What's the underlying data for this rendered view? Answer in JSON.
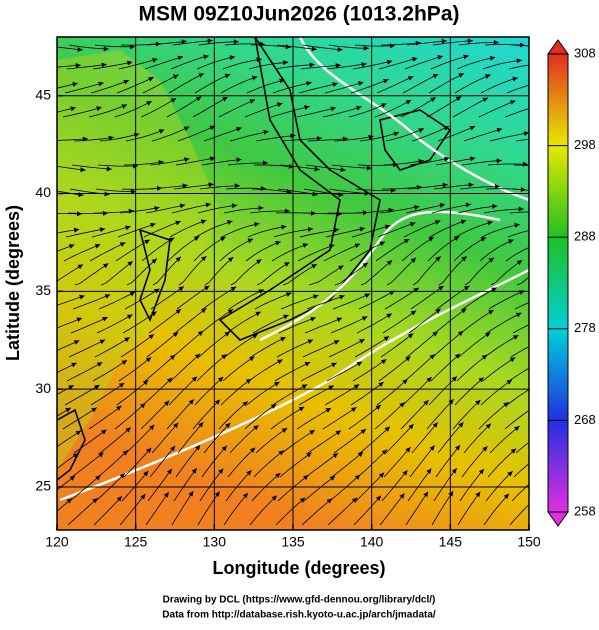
{
  "chart_data": {
    "type": "map",
    "title": "MSM 09Z10Jun2026 (1013.2hPa)",
    "x_label": "Longitude (degrees)",
    "y_label": "Latitude  (degrees)",
    "xlim": [
      120,
      150
    ],
    "ylim": [
      22.8,
      48
    ],
    "xticks": [
      120,
      125,
      130,
      135,
      140,
      145,
      150
    ],
    "yticks": [
      25,
      30,
      35,
      40,
      45
    ],
    "grid": true,
    "colorbar": {
      "lim": [
        258,
        308
      ],
      "ticks": [
        258,
        268,
        278,
        288,
        298,
        308
      ],
      "colors": [
        "#e030e0",
        "#2030e0",
        "#00d0d8",
        "#20c020",
        "#e8e800",
        "#e03020"
      ]
    },
    "credits": [
      "Drawing by DCL (https://www.gfd-dennou.org/library/dcl/)",
      "Data from http://database.rish.kyoto-u.ac.jp/arch/jmadata/"
    ]
  }
}
